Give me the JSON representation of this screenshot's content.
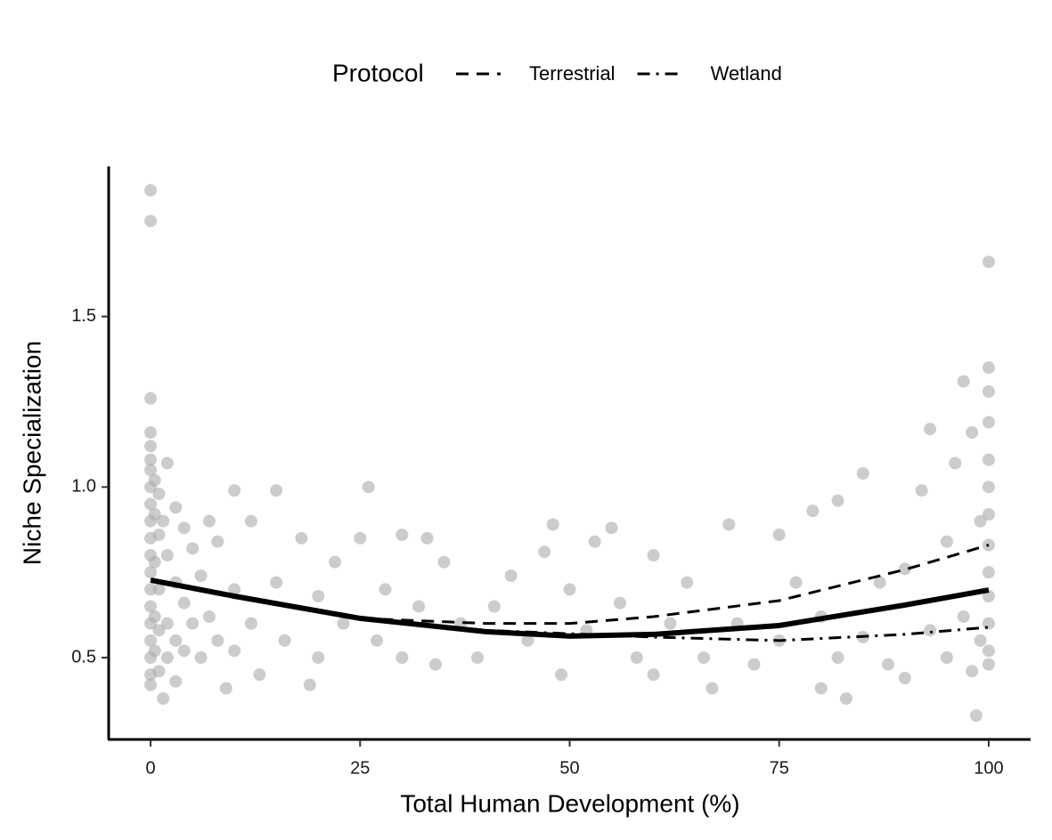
{
  "chart_data": {
    "type": "scatter",
    "x_label": "Total Human Development (%)",
    "y_label": "Niche Specialization",
    "legend_title": "Protocol",
    "xlim": [
      -5,
      105
    ],
    "ylim": [
      0.26,
      1.94
    ],
    "xticks": [
      0,
      25,
      50,
      75,
      100
    ],
    "yticks": [
      0.5,
      {
        "value": 1,
        "label": "1.0"
      },
      1.5
    ],
    "points": {
      "color": "#aaaaaa",
      "x": [
        0,
        0,
        0,
        0,
        0,
        0,
        0,
        0,
        0,
        0,
        0,
        0,
        0,
        0,
        0,
        0,
        0,
        0,
        0,
        0,
        0.5,
        0.5,
        0.5,
        0.5,
        0.5,
        1,
        1,
        1,
        1,
        1,
        1.5,
        1.5,
        2,
        2,
        2,
        2,
        3,
        3,
        3,
        3,
        4,
        4,
        4,
        5,
        5,
        6,
        6,
        7,
        7,
        8,
        8,
        9,
        10,
        10,
        10,
        12,
        12,
        13,
        15,
        15,
        16,
        18,
        19,
        20,
        20,
        22,
        23,
        25,
        26,
        27,
        28,
        30,
        30,
        32,
        33,
        34,
        35,
        37,
        39,
        41,
        43,
        45,
        47,
        48,
        49,
        50,
        52,
        53,
        55,
        56,
        58,
        60,
        60,
        62,
        64,
        66,
        67,
        69,
        70,
        72,
        75,
        75,
        77,
        79,
        80,
        80,
        82,
        82,
        83,
        85,
        85,
        87,
        88,
        90,
        90,
        92,
        93,
        93,
        95,
        95,
        96,
        97,
        97,
        98,
        98,
        98.5,
        99,
        99,
        100,
        100,
        100,
        100,
        100,
        100,
        100,
        100,
        100,
        100,
        100,
        100,
        100
      ],
      "values": [
        1.87,
        1.78,
        1.26,
        1.16,
        1.12,
        1.08,
        1.05,
        1.0,
        0.95,
        0.9,
        0.85,
        0.8,
        0.75,
        0.7,
        0.65,
        0.6,
        0.55,
        0.5,
        0.45,
        0.42,
        1.02,
        0.92,
        0.78,
        0.62,
        0.52,
        0.98,
        0.86,
        0.7,
        0.58,
        0.46,
        0.38,
        0.9,
        1.07,
        0.8,
        0.6,
        0.5,
        0.94,
        0.72,
        0.55,
        0.43,
        0.88,
        0.66,
        0.52,
        0.82,
        0.6,
        0.74,
        0.5,
        0.9,
        0.62,
        0.84,
        0.55,
        0.41,
        0.99,
        0.7,
        0.52,
        0.9,
        0.6,
        0.45,
        0.99,
        0.72,
        0.55,
        0.85,
        0.42,
        0.68,
        0.5,
        0.78,
        0.6,
        0.85,
        1.0,
        0.55,
        0.7,
        0.86,
        0.5,
        0.65,
        0.85,
        0.48,
        0.78,
        0.6,
        0.5,
        0.65,
        0.74,
        0.55,
        0.81,
        0.89,
        0.45,
        0.7,
        0.58,
        0.84,
        0.88,
        0.66,
        0.5,
        0.8,
        0.45,
        0.6,
        0.72,
        0.5,
        0.41,
        0.89,
        0.6,
        0.48,
        0.86,
        0.55,
        0.72,
        0.93,
        0.62,
        0.41,
        0.96,
        0.5,
        0.38,
        1.04,
        0.56,
        0.72,
        0.48,
        0.76,
        0.44,
        0.99,
        1.17,
        0.58,
        0.84,
        0.5,
        1.07,
        1.31,
        0.62,
        1.16,
        0.46,
        0.33,
        0.9,
        0.55,
        1.66,
        1.35,
        1.28,
        1.19,
        1.08,
        1.0,
        0.92,
        0.83,
        0.75,
        0.68,
        0.6,
        0.52,
        0.48
      ]
    },
    "fits": [
      {
        "dash": "solid",
        "color": "#000000",
        "x": [
          0,
          10,
          25,
          40,
          50,
          60,
          75,
          90,
          100
        ],
        "values": [
          0.727,
          0.68,
          0.615,
          0.576,
          0.563,
          0.568,
          0.594,
          0.654,
          0.698
        ]
      },
      {
        "name": "Terrestrial",
        "dash": "dashed",
        "color": "#000000",
        "x": [
          25,
          40,
          50,
          60,
          75,
          90,
          100
        ],
        "values": [
          0.615,
          0.6,
          0.6,
          0.62,
          0.667,
          0.758,
          0.83
        ]
      },
      {
        "name": "Wetland",
        "dash": "dotdash",
        "color": "#000000",
        "x": [
          25,
          40,
          50,
          60,
          75,
          90,
          100
        ],
        "values": [
          0.615,
          0.58,
          0.57,
          0.56,
          0.55,
          0.568,
          0.589
        ]
      }
    ]
  }
}
